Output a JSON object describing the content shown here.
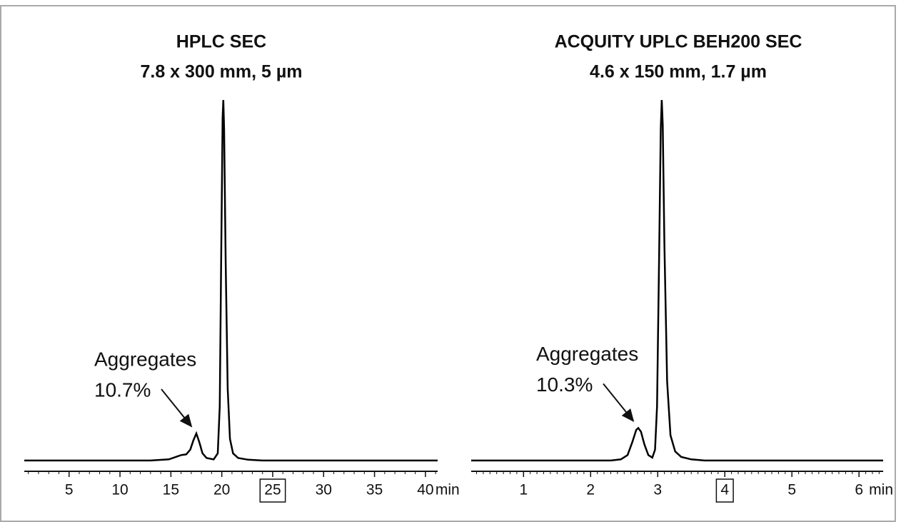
{
  "chart_data": [
    {
      "type": "line",
      "title": "HPLC SEC",
      "subtitle": "7.8 x 300 mm, 5 µm",
      "x": [
        0.6,
        13,
        14.8,
        15.5,
        16.0,
        16.5,
        16.9,
        17.2,
        17.5,
        17.8,
        18.1,
        18.5,
        19.2,
        19.6,
        19.8,
        19.95,
        20.08,
        20.15,
        20.23,
        20.38,
        20.58,
        20.8,
        21.1,
        21.6,
        22.6,
        24,
        41.2
      ],
      "values": [
        0,
        0,
        0.3,
        1.0,
        1.5,
        1.7,
        3,
        5.5,
        7.5,
        5,
        2,
        0.7,
        0.3,
        2,
        15,
        60,
        95,
        100,
        92,
        55,
        20,
        6,
        2,
        0.7,
        0.2,
        0,
        0
      ],
      "color": "#000000",
      "xlim": [
        0.6,
        41.2
      ],
      "xticks": [
        5,
        10,
        15,
        20,
        25,
        30,
        35,
        40
      ],
      "xminor": 1,
      "boxed_xtick": 25,
      "xlabel": "min",
      "ylim": [
        -3,
        100
      ],
      "annotation": {
        "text": [
          "Aggregates",
          "10.7%"
        ],
        "x": 17.5
      }
    },
    {
      "type": "line",
      "title": "ACQUITY UPLC BEH200 SEC",
      "subtitle": "4.6 x 150 mm, 1.7 µm",
      "x": [
        0.22,
        2.3,
        2.45,
        2.55,
        2.62,
        2.68,
        2.71,
        2.75,
        2.8,
        2.86,
        2.92,
        2.96,
        2.99,
        3.02,
        3.045,
        3.06,
        3.075,
        3.1,
        3.14,
        3.19,
        3.26,
        3.35,
        3.5,
        3.7,
        6.36
      ],
      "values": [
        0,
        0,
        0.3,
        1.5,
        5,
        8.5,
        9,
        8,
        4.5,
        1.5,
        0.8,
        3,
        15,
        55,
        92,
        100,
        93,
        60,
        22,
        7,
        2.5,
        1,
        0.3,
        0,
        0
      ],
      "color": "#000000",
      "xlim": [
        0.22,
        6.36
      ],
      "xticks": [
        1,
        2,
        3,
        4,
        5,
        6
      ],
      "xminor": 0.1,
      "boxed_xtick": 4,
      "xlabel": "min",
      "ylim": [
        -3,
        100
      ],
      "annotation": {
        "text": [
          "Aggregates",
          "10.3%"
        ],
        "x": 2.71
      }
    }
  ]
}
